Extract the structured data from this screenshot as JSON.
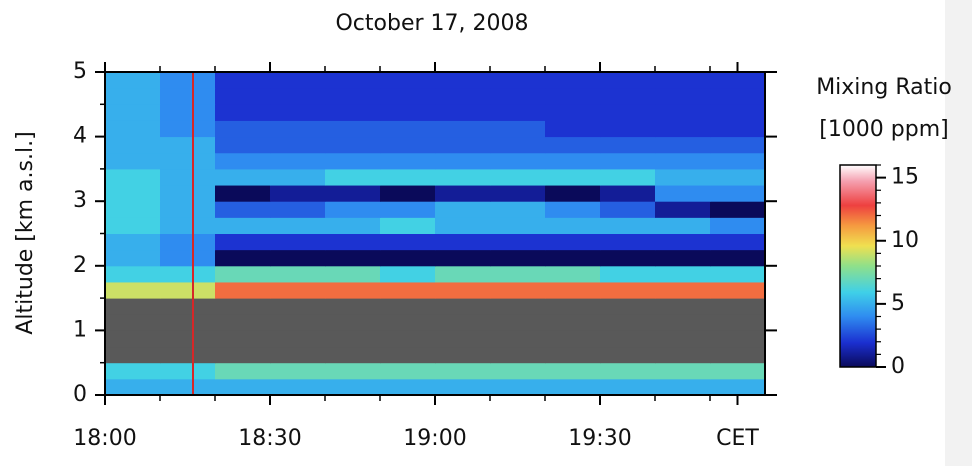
{
  "chart_data": {
    "type": "heatmap",
    "title": "October 17, 2008",
    "ylabel": "Altitude [km a.s.l.]",
    "colorbar_label": [
      "Mixing Ratio",
      "[1000 ppm]"
    ],
    "x": [
      5,
      15,
      25,
      35,
      45,
      55,
      65,
      75,
      85,
      95,
      105,
      115
    ],
    "y": [
      0.125,
      0.375,
      0.625,
      0.875,
      1.125,
      1.375,
      1.625,
      1.875,
      2.125,
      2.375,
      2.625,
      2.875,
      3.125,
      3.375,
      3.625,
      3.875,
      4.125,
      4.375,
      4.625,
      4.875
    ],
    "z": [
      [
        5,
        5,
        5,
        5,
        5,
        5,
        5,
        5,
        5,
        5,
        5,
        5
      ],
      [
        6,
        6,
        7,
        7,
        7,
        7,
        7,
        7,
        7,
        7,
        7,
        7
      ],
      [
        null,
        null,
        null,
        null,
        null,
        null,
        null,
        null,
        null,
        null,
        null,
        null
      ],
      [
        null,
        null,
        null,
        null,
        null,
        null,
        null,
        null,
        null,
        null,
        null,
        null
      ],
      [
        null,
        null,
        null,
        null,
        null,
        null,
        null,
        null,
        null,
        null,
        null,
        null
      ],
      [
        null,
        null,
        null,
        null,
        null,
        null,
        null,
        null,
        null,
        null,
        null,
        null
      ],
      [
        9,
        9,
        12,
        12,
        12,
        12,
        12,
        12,
        12,
        12,
        12,
        12
      ],
      [
        6,
        6,
        7,
        7,
        7,
        6,
        7,
        7,
        7,
        6,
        6,
        6
      ],
      [
        5,
        4,
        0,
        0,
        0,
        0,
        0,
        0,
        0,
        0,
        0,
        0
      ],
      [
        5,
        4,
        2,
        2,
        2,
        2,
        2,
        2,
        2,
        2,
        2,
        2
      ],
      [
        6,
        5,
        5,
        5,
        5,
        6,
        5,
        5,
        5,
        5,
        5,
        4
      ],
      [
        6,
        5,
        3,
        3,
        4,
        4,
        5,
        5,
        4,
        3,
        1,
        0
      ],
      [
        6,
        5,
        0,
        1,
        1,
        0,
        1,
        1,
        0,
        1,
        4,
        4
      ],
      [
        6,
        5,
        5,
        5,
        6,
        6,
        6,
        6,
        6,
        6,
        5,
        5
      ],
      [
        5,
        5,
        4,
        4,
        4,
        4,
        4,
        4,
        4,
        4,
        4,
        4
      ],
      [
        5,
        5,
        3,
        3,
        3,
        3,
        3,
        3,
        3,
        3,
        3,
        3
      ],
      [
        5,
        4,
        3,
        3,
        3,
        3,
        3,
        3,
        2,
        2,
        2,
        2
      ],
      [
        5,
        4,
        2,
        2,
        2,
        2,
        2,
        2,
        2,
        2,
        2,
        2
      ],
      [
        5,
        4,
        2,
        2,
        2,
        2,
        2,
        2,
        2,
        2,
        2,
        2
      ],
      [
        5,
        4,
        2,
        2,
        2,
        2,
        2,
        2,
        2,
        2,
        2,
        2
      ]
    ],
    "xlim": [
      0,
      120
    ],
    "xticks": [
      {
        "value": 0,
        "label": "18:00"
      },
      {
        "value": 30,
        "label": "18:30"
      },
      {
        "value": 60,
        "label": "19:00"
      },
      {
        "value": 90,
        "label": "19:30"
      },
      {
        "value": 115,
        "label": "CET"
      }
    ],
    "ylim": [
      0,
      5
    ],
    "yticks": [
      0,
      1,
      2,
      3,
      4,
      5
    ],
    "zlim": [
      0,
      16
    ],
    "zticks": [
      0,
      5,
      10,
      15
    ],
    "vline": 16,
    "vline_color": "#d62728",
    "nodata_color": "#595959"
  }
}
